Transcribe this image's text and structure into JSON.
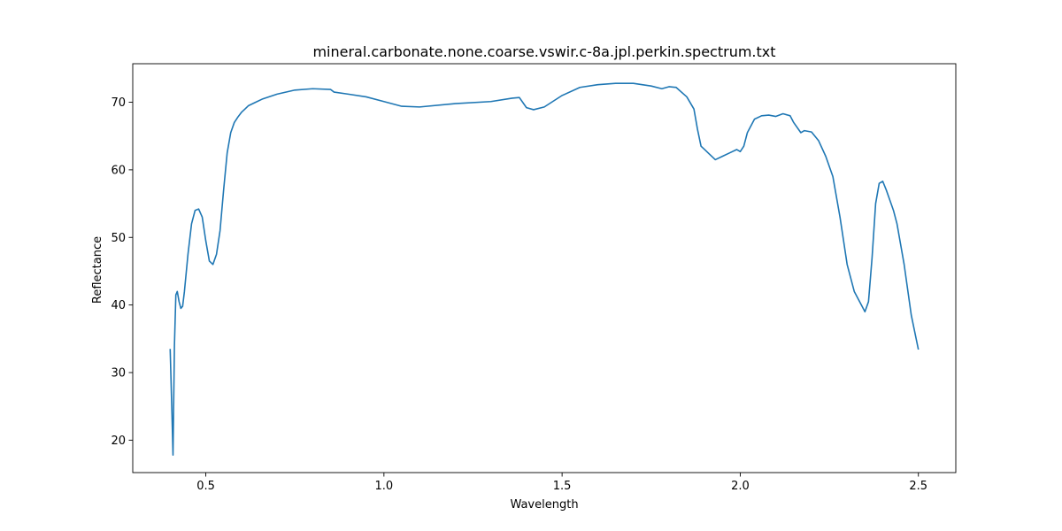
{
  "chart_data": {
    "type": "line",
    "title": "mineral.carbonate.none.coarse.vswir.c-8a.jpl.perkin.spectrum.txt",
    "xlabel": "Wavelength",
    "ylabel": "Reflectance",
    "xlim": [
      0.295,
      2.605
    ],
    "ylim": [
      15.2,
      75.7
    ],
    "xticks": [
      0.5,
      1.0,
      1.5,
      2.0,
      2.5
    ],
    "xtick_labels": [
      "0.5",
      "1.0",
      "1.5",
      "2.0",
      "2.5"
    ],
    "yticks": [
      20,
      30,
      40,
      50,
      60,
      70
    ],
    "ytick_labels": [
      "20",
      "30",
      "40",
      "50",
      "60",
      "70"
    ],
    "grid": false,
    "legend": "none",
    "series_color": "#1f77b4",
    "series": [
      {
        "x": [
          0.4,
          0.405,
          0.408,
          0.412,
          0.416,
          0.42,
          0.425,
          0.43,
          0.435,
          0.44,
          0.45,
          0.46,
          0.47,
          0.48,
          0.49,
          0.5,
          0.51,
          0.52,
          0.53,
          0.54,
          0.55,
          0.56,
          0.57,
          0.58,
          0.59,
          0.6,
          0.61,
          0.62,
          0.64,
          0.66,
          0.7,
          0.75,
          0.8,
          0.85,
          0.86,
          0.9,
          0.95,
          1.0,
          1.05,
          1.1,
          1.2,
          1.3,
          1.36,
          1.38,
          1.4,
          1.42,
          1.45,
          1.5,
          1.55,
          1.6,
          1.65,
          1.7,
          1.75,
          1.78,
          1.8,
          1.82,
          1.85,
          1.87,
          1.88,
          1.89,
          1.9,
          1.91,
          1.93,
          1.95,
          1.97,
          1.99,
          2.0,
          2.01,
          2.02,
          2.04,
          2.06,
          2.08,
          2.1,
          2.12,
          2.14,
          2.15,
          2.17,
          2.18,
          2.2,
          2.22,
          2.24,
          2.26,
          2.28,
          2.3,
          2.32,
          2.34,
          2.35,
          2.36,
          2.37,
          2.38,
          2.39,
          2.4,
          2.41,
          2.42,
          2.43,
          2.44,
          2.46,
          2.48,
          2.5
        ],
        "y": [
          33.5,
          24.0,
          17.8,
          34.0,
          41.5,
          42.0,
          40.5,
          39.5,
          39.8,
          42.0,
          47.5,
          52.0,
          54.0,
          54.2,
          53.0,
          49.5,
          46.5,
          46.0,
          47.5,
          51.0,
          57.0,
          62.5,
          65.5,
          67.0,
          67.8,
          68.5,
          69.0,
          69.5,
          70.0,
          70.5,
          71.2,
          71.8,
          72.0,
          71.9,
          71.5,
          71.2,
          70.8,
          70.1,
          69.4,
          69.3,
          69.8,
          70.1,
          70.6,
          70.7,
          69.2,
          68.9,
          69.3,
          71.0,
          72.2,
          72.6,
          72.8,
          72.8,
          72.4,
          72.0,
          72.3,
          72.2,
          70.8,
          69.0,
          66.0,
          63.5,
          63.0,
          62.5,
          61.5,
          62.0,
          62.5,
          63.0,
          62.7,
          63.5,
          65.5,
          67.5,
          68.0,
          68.1,
          67.9,
          68.3,
          68.0,
          67.0,
          65.5,
          65.8,
          65.6,
          64.3,
          62.0,
          59.0,
          53.0,
          46.0,
          42.0,
          40.0,
          39.0,
          40.5,
          47.0,
          55.0,
          58.0,
          58.3,
          57.0,
          55.5,
          54.0,
          52.0,
          46.0,
          38.5,
          33.4
        ]
      }
    ]
  }
}
